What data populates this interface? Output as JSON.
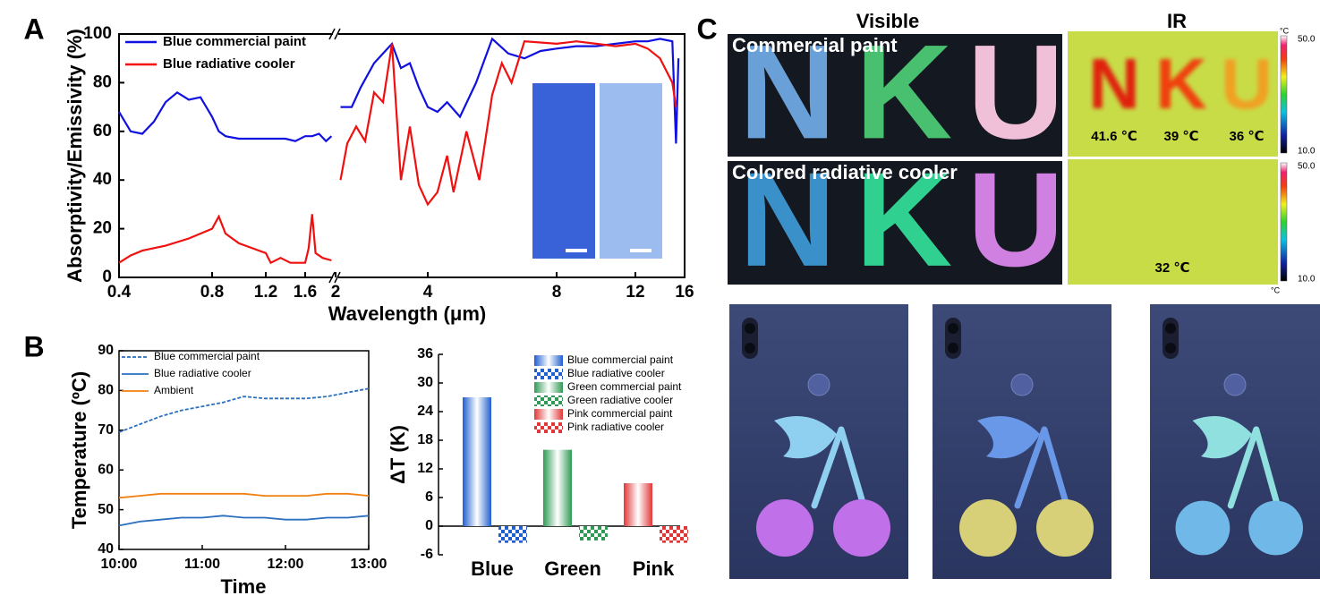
{
  "panel_labels": [
    "A",
    "B",
    "C"
  ],
  "chart_data": [
    {
      "type": "line",
      "xlabel": "Wavelength (μm)",
      "ylabel": "Absorptivity/Emissivity (%)",
      "xticks": [
        0.4,
        0.8,
        1.2,
        1.6,
        2,
        4,
        8,
        12,
        16
      ],
      "xbreak": 2,
      "ylim": [
        0,
        100
      ],
      "yticks": [
        0,
        20,
        40,
        60,
        80,
        100
      ],
      "series": [
        {
          "name": "Blue commercial paint",
          "color": "#1010e0",
          "x": [
            0.4,
            0.45,
            0.5,
            0.55,
            0.6,
            0.65,
            0.7,
            0.75,
            0.8,
            0.85,
            0.9,
            1.0,
            1.2,
            1.4,
            1.5,
            1.6,
            1.7,
            1.8,
            1.9,
            1.98,
            null,
            2.05,
            2.3,
            2.5,
            2.8,
            3.0,
            3.2,
            3.4,
            3.6,
            3.8,
            4.0,
            4.3,
            4.6,
            5.0,
            5.5,
            6.0,
            6.5,
            7.0,
            7.5,
            8.0,
            9,
            10,
            11,
            12,
            13,
            14,
            15,
            15.3,
            15.5
          ],
          "values": [
            68,
            60,
            59,
            64,
            72,
            76,
            73,
            74,
            66,
            60,
            58,
            57,
            57,
            57,
            56,
            58,
            58,
            59,
            56,
            58,
            null,
            70,
            70,
            78,
            88,
            92,
            96,
            86,
            88,
            78,
            70,
            68,
            72,
            66,
            80,
            98,
            92,
            90,
            93,
            94,
            95,
            95,
            96,
            97,
            97,
            98,
            97,
            55,
            90
          ]
        },
        {
          "name": "Blue radiative cooler",
          "color": "#f01010",
          "x": [
            0.4,
            0.45,
            0.5,
            0.6,
            0.7,
            0.8,
            0.85,
            0.9,
            1.0,
            1.1,
            1.15,
            1.2,
            1.25,
            1.35,
            1.45,
            1.6,
            1.65,
            1.7,
            1.75,
            1.85,
            1.98,
            null,
            2.05,
            2.2,
            2.4,
            2.6,
            2.8,
            3.0,
            3.2,
            3.4,
            3.6,
            3.8,
            4.0,
            4.3,
            4.6,
            4.8,
            5.2,
            5.6,
            6.0,
            6.3,
            6.6,
            7.0,
            8,
            9,
            10,
            11,
            12,
            13,
            14,
            15,
            15.3
          ],
          "values": [
            6,
            9,
            11,
            13,
            16,
            20,
            25,
            18,
            14,
            12,
            11,
            10,
            6,
            8,
            6,
            6,
            12,
            26,
            10,
            8,
            7,
            null,
            40,
            55,
            62,
            56,
            76,
            72,
            96,
            40,
            62,
            38,
            30,
            35,
            50,
            35,
            60,
            40,
            75,
            88,
            80,
            97,
            96,
            97,
            96,
            95,
            96,
            94,
            90,
            80,
            70
          ]
        }
      ]
    },
    {
      "type": "line",
      "xlabel": "Time",
      "ylabel": "Temperature (ºC)",
      "xlim": [
        10,
        13
      ],
      "xticks": [
        {
          "value": 10,
          "label": "10:00"
        },
        {
          "value": 11,
          "label": "11:00"
        },
        {
          "value": 12,
          "label": "12:00"
        },
        {
          "value": 13,
          "label": "13:00"
        }
      ],
      "ylim": [
        40,
        90
      ],
      "yticks": [
        40,
        50,
        60,
        70,
        80,
        90
      ],
      "series": [
        {
          "name": "Blue commercial paint",
          "color": "#2a6fc0",
          "dash": true,
          "x": [
            10,
            10.25,
            10.5,
            10.75,
            11,
            11.25,
            11.5,
            11.75,
            12,
            12.25,
            12.5,
            12.75,
            13
          ],
          "values": [
            69.5,
            71.5,
            73.5,
            75,
            76,
            77,
            78.5,
            78,
            78,
            78,
            78.5,
            79.5,
            80.5
          ]
        },
        {
          "name": "Blue radiative cooler",
          "color": "#2a6fc0",
          "x": [
            10,
            10.25,
            10.5,
            10.75,
            11,
            11.25,
            11.5,
            11.75,
            12,
            12.25,
            12.5,
            12.75,
            13
          ],
          "values": [
            46,
            47,
            47.5,
            48,
            48,
            48.5,
            48,
            48,
            47.5,
            47.5,
            48,
            48,
            48.5
          ]
        },
        {
          "name": "Ambient",
          "color": "#f08010",
          "x": [
            10,
            10.25,
            10.5,
            10.75,
            11,
            11.25,
            11.5,
            11.75,
            12,
            12.25,
            12.5,
            12.75,
            13
          ],
          "values": [
            53,
            53.5,
            54,
            54,
            54,
            54,
            54,
            53.5,
            53.5,
            53.5,
            54,
            54,
            53.5
          ]
        }
      ]
    },
    {
      "type": "bar",
      "ylabel": "ΔT (K)",
      "categories": [
        "Blue",
        "Green",
        "Pink"
      ],
      "ylim": [
        -6,
        36
      ],
      "yticks": [
        -6,
        0,
        6,
        12,
        18,
        24,
        30,
        36
      ],
      "series": [
        {
          "name": "Blue commercial paint",
          "color": "#1f5fd0",
          "pattern": "gradient",
          "values": [
            27,
            null,
            null
          ]
        },
        {
          "name": "Blue radiative cooler",
          "color": "#1f5fd0",
          "pattern": "checker",
          "values": [
            -3.5,
            null,
            null
          ]
        },
        {
          "name": "Green commercial paint",
          "color": "#2f9a55",
          "pattern": "gradient",
          "values": [
            null,
            16,
            null
          ]
        },
        {
          "name": "Green radiative cooler",
          "color": "#2f9a55",
          "pattern": "checker",
          "values": [
            null,
            -3,
            null
          ]
        },
        {
          "name": "Pink commercial paint",
          "color": "#e03838",
          "pattern": "gradient",
          "values": [
            null,
            null,
            9
          ]
        },
        {
          "name": "Pink radiative cooler",
          "color": "#e03838",
          "pattern": "checker",
          "values": [
            null,
            null,
            -3.5
          ]
        }
      ]
    }
  ],
  "panel_c": {
    "visible": "Visible",
    "ir": "IR",
    "rows": [
      {
        "label": "Commercial paint",
        "temps": [
          "41.6 ℃",
          "39 ℃",
          "36 ℃"
        ]
      },
      {
        "label": "Colored radiative cooler",
        "temps": [
          "32 ℃"
        ]
      }
    ],
    "letters": [
      "N",
      "K",
      "U"
    ],
    "colorbar": {
      "max": "50.0",
      "min": "10.0",
      "unit": "°C"
    }
  }
}
